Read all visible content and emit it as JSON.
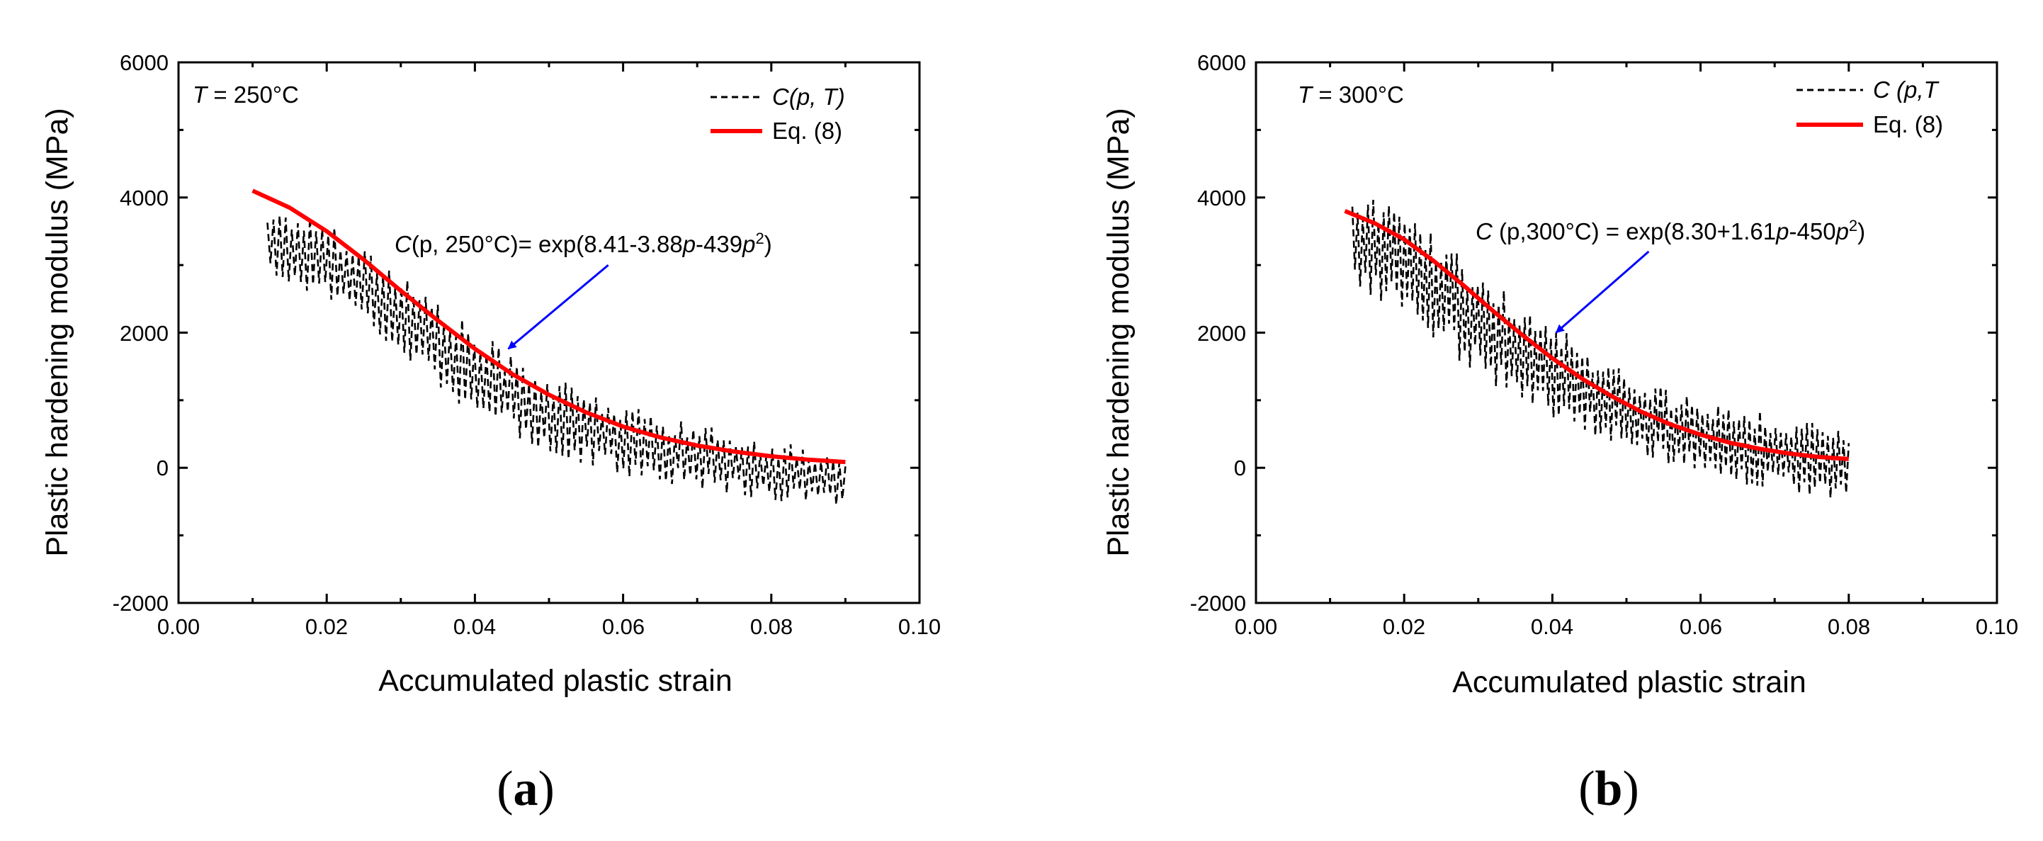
{
  "figure": {
    "colors": {
      "data": "#000000",
      "fit": "#ff0000",
      "arrow": "#0000ff",
      "axis": "#000000"
    }
  },
  "chart_data": [
    {
      "type": "line",
      "panel_label": "(a)",
      "panel_letter": "a",
      "inset_var": "T",
      "inset_rest": " = 250°C",
      "xlabel": "Accumulated plastic strain",
      "ylabel": "Plastic hardening modulus (MPa)",
      "xlim": [
        0.0,
        0.1
      ],
      "ylim": [
        -2000,
        6000
      ],
      "xticks": [
        "0.00",
        "0.02",
        "0.04",
        "0.06",
        "0.08",
        "0.10"
      ],
      "yticks": [
        "-2000",
        "0",
        "2000",
        "4000",
        "6000"
      ],
      "legend": {
        "position": "top-right",
        "data_a": "C(p, ",
        "data_b": "T",
        "data_c": ")",
        "fit": "Eq. (8)"
      },
      "equation": {
        "c": "C",
        "lhs": "(p, 250°C)= exp(8.41-3.88",
        "mid": "-439",
        "p1": "p",
        "p2": "p",
        "sup": "2",
        "tail": ")"
      },
      "series": [
        {
          "name": "C(p, T) scattered data",
          "style": "dashed",
          "x_range": [
            0.012,
            0.09
          ],
          "upper_envelope": [
            [
              0.012,
              3850
            ],
            [
              0.02,
              3700
            ],
            [
              0.03,
              2900
            ],
            [
              0.04,
              2050
            ],
            [
              0.05,
              1350
            ],
            [
              0.06,
              950
            ],
            [
              0.07,
              650
            ],
            [
              0.08,
              400
            ],
            [
              0.09,
              200
            ]
          ],
          "lower_envelope": [
            [
              0.012,
              2800
            ],
            [
              0.02,
              2500
            ],
            [
              0.03,
              1700
            ],
            [
              0.04,
              700
            ],
            [
              0.05,
              200
            ],
            [
              0.06,
              -150
            ],
            [
              0.07,
              -300
            ],
            [
              0.08,
              -500
            ],
            [
              0.09,
              -550
            ]
          ]
        },
        {
          "name": "Eq. (8)",
          "style": "solid",
          "x": [
            0.01,
            0.015,
            0.02,
            0.025,
            0.03,
            0.035,
            0.04,
            0.045,
            0.05,
            0.055,
            0.06,
            0.065,
            0.07,
            0.075,
            0.08,
            0.085,
            0.09
          ],
          "y": [
            4100,
            3850,
            3500,
            3080,
            2620,
            2180,
            1760,
            1390,
            1080,
            820,
            610,
            450,
            330,
            240,
            170,
            120,
            85
          ]
        }
      ],
      "arrow": {
        "from": [
          0.058,
          3000
        ],
        "to": [
          0.0445,
          1760
        ]
      }
    },
    {
      "type": "line",
      "panel_label": "(b)",
      "panel_letter": "b",
      "inset_var": "T",
      "inset_rest": " = 300°C",
      "xlabel": "Accumulated plastic strain",
      "ylabel": "Plastic hardening modulus (MPa)",
      "xlim": [
        0.0,
        0.1
      ],
      "ylim": [
        -2000,
        6000
      ],
      "xticks": [
        "0.00",
        "0.02",
        "0.04",
        "0.06",
        "0.08",
        "0.10"
      ],
      "yticks": [
        "-2000",
        "0",
        "2000",
        "4000",
        "6000"
      ],
      "legend": {
        "position": "top-right",
        "data_a": "C (p,",
        "data_b": "T",
        "data_c": "",
        "fit": "Eq. (8)"
      },
      "equation": {
        "c": "C",
        "lhs": " (p,300°C) = exp(8.30+1.61",
        "mid": "-450",
        "p1": "p",
        "p2": "p",
        "sup": "2",
        "tail": ")"
      },
      "series": [
        {
          "name": "C (p,T) scattered data",
          "style": "dashed",
          "x_range": [
            0.013,
            0.08
          ],
          "upper_envelope": [
            [
              0.013,
              4150
            ],
            [
              0.02,
              3900
            ],
            [
              0.03,
              2950
            ],
            [
              0.04,
              2200
            ],
            [
              0.05,
              1400
            ],
            [
              0.06,
              1050
            ],
            [
              0.07,
              800
            ],
            [
              0.08,
              550
            ]
          ],
          "lower_envelope": [
            [
              0.013,
              2750
            ],
            [
              0.02,
              2200
            ],
            [
              0.03,
              1350
            ],
            [
              0.04,
              700
            ],
            [
              0.05,
              300
            ],
            [
              0.06,
              -150
            ],
            [
              0.07,
              -350
            ],
            [
              0.08,
              -500
            ]
          ]
        },
        {
          "name": "Eq. (8)",
          "style": "solid",
          "x": [
            0.012,
            0.016,
            0.02,
            0.024,
            0.028,
            0.032,
            0.036,
            0.04,
            0.044,
            0.048,
            0.052,
            0.056,
            0.06,
            0.064,
            0.068,
            0.072,
            0.076,
            0.08
          ],
          "y": [
            3800,
            3620,
            3380,
            3060,
            2700,
            2320,
            1960,
            1620,
            1320,
            1060,
            830,
            640,
            490,
            370,
            280,
            210,
            160,
            130
          ]
        }
      ],
      "arrow": {
        "from": [
          0.053,
          3200
        ],
        "to": [
          0.0405,
          2000
        ]
      }
    }
  ]
}
